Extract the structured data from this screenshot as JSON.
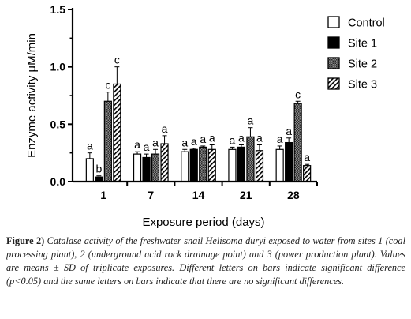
{
  "chart_data": {
    "type": "bar",
    "xlabel": "Exposure period (days)",
    "ylabel": "Enzyme activity µM/min",
    "ylim": [
      0,
      1.5
    ],
    "yticks": [
      "0.0",
      "0.5",
      "1.0",
      "1.5"
    ],
    "categories": [
      "1",
      "7",
      "14",
      "21",
      "28"
    ],
    "legend_position": "top-right",
    "series": [
      {
        "name": "Control",
        "pattern": "open",
        "values": [
          0.2,
          0.24,
          0.26,
          0.28,
          0.28
        ],
        "errors": [
          0.05,
          0.02,
          0.02,
          0.02,
          0.03
        ],
        "labels": [
          "a",
          "a",
          "a",
          "a",
          "a"
        ]
      },
      {
        "name": "Site 1",
        "pattern": "solid",
        "values": [
          0.04,
          0.21,
          0.28,
          0.3,
          0.34
        ],
        "errors": [
          0.01,
          0.03,
          0.01,
          0.02,
          0.04
        ],
        "labels": [
          "b",
          "a",
          "a",
          "a",
          "a"
        ]
      },
      {
        "name": "Site 2",
        "pattern": "checkered",
        "values": [
          0.7,
          0.24,
          0.3,
          0.39,
          0.68
        ],
        "errors": [
          0.08,
          0.04,
          0.01,
          0.08,
          0.02
        ],
        "labels": [
          "c",
          "a",
          "a",
          "a",
          "c"
        ]
      },
      {
        "name": "Site 3",
        "pattern": "hatched",
        "values": [
          0.85,
          0.33,
          0.28,
          0.27,
          0.14
        ],
        "errors": [
          0.15,
          0.07,
          0.04,
          0.05,
          0.01
        ],
        "labels": [
          "c",
          "a",
          "a",
          "a",
          "a"
        ]
      }
    ]
  },
  "caption": {
    "label": "Figure 2)",
    "text": "Catalase activity of the freshwater snail Helisoma duryi exposed to water from sites 1 (coal processing plant), 2 (underground acid rock drainage point) and 3 (power production plant). Values are means ± SD of triplicate exposures. Different letters on bars indicate significant difference (p<0.05) and the same letters on bars indicate that there are no significant differences."
  },
  "colors": {
    "axis": "#000000",
    "bar_outline": "#000000",
    "caption_text": "#222222"
  }
}
